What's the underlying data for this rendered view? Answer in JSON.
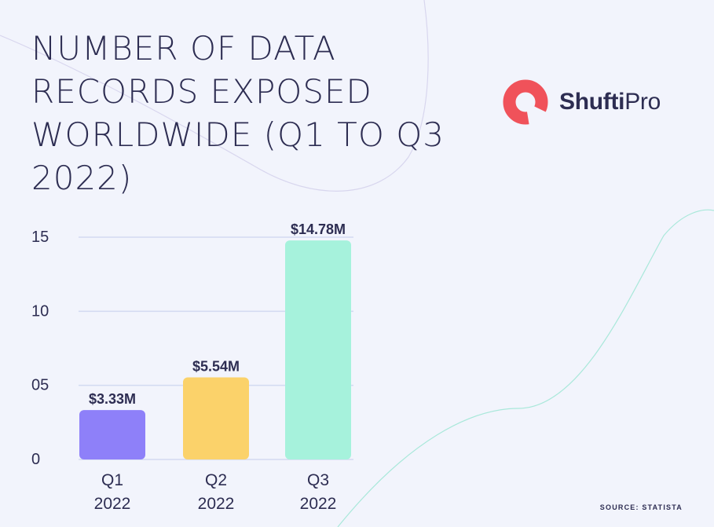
{
  "title": "NUMBER OF DATA RECORDS EXPOSED WORLDWIDE (Q1 TO Q3 2022)",
  "logo": {
    "brand_bold": "Shufti",
    "brand_regular": "Pro"
  },
  "source": "SOURCE: STATISTA",
  "colors": {
    "q1": "#8e80f9",
    "q2": "#fbd26a",
    "q3": "#a6f2dc",
    "grid": "#d3daf1",
    "text": "#2d2d52",
    "logo": "#f0525a"
  },
  "chart_data": {
    "type": "bar",
    "categories": [
      {
        "line1": "Q1",
        "line2": "2022"
      },
      {
        "line1": "Q2",
        "line2": "2022"
      },
      {
        "line1": "Q3",
        "line2": "2022"
      }
    ],
    "values": [
      3.33,
      5.54,
      14.78
    ],
    "data_labels": [
      "$3.33M",
      "$5.54M",
      "$14.78M"
    ],
    "y_ticks": [
      {
        "value": 0,
        "label": "0"
      },
      {
        "value": 5,
        "label": "05"
      },
      {
        "value": 10,
        "label": "10"
      },
      {
        "value": 15,
        "label": "15"
      }
    ],
    "ylim": [
      0,
      15
    ],
    "grid": true
  }
}
